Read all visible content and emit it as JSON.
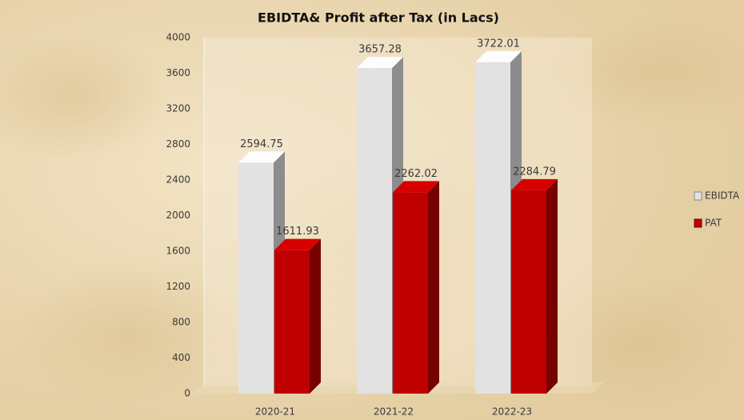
{
  "chart_data": {
    "type": "bar3d",
    "title": "EBIDTA& Profit after Tax (in Lacs)",
    "categories": [
      "2020-21",
      "2021-22",
      "2022-23"
    ],
    "series": [
      {
        "name": "EBIDTA",
        "color": "#e2e2e2",
        "values": [
          2594.75,
          3657.28,
          3722.01
        ]
      },
      {
        "name": "PAT",
        "color": "#c00000",
        "values": [
          1611.93,
          2262.02,
          2284.79
        ]
      }
    ],
    "ylim": [
      0,
      4000
    ],
    "yticks": [
      0,
      400,
      800,
      1200,
      1600,
      2000,
      2400,
      2800,
      3200,
      3600,
      4000
    ],
    "legend": "right"
  }
}
